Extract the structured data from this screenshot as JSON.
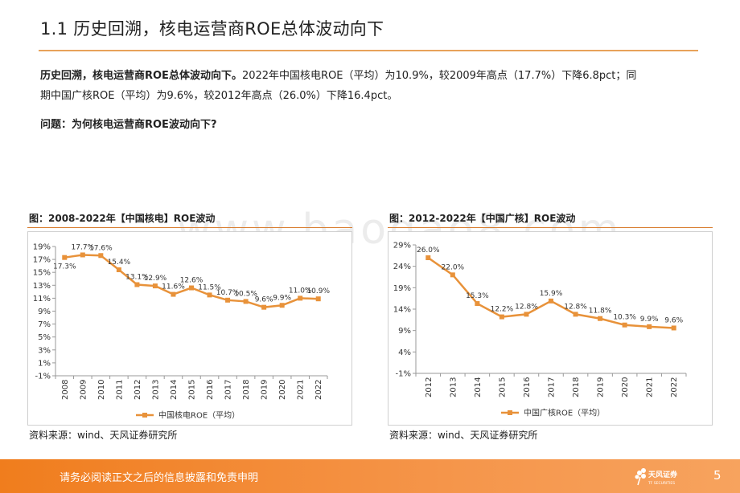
{
  "header": {
    "title": "1.1 历史回溯，核电运营商ROE总体波动向下"
  },
  "summary": {
    "lead": "历史回溯，核电运营商ROE总体波动向下。",
    "line1_rest": "2022年中国核电ROE（平均）为10.9%，较2009年高点（17.7%）下降6.8pct；同",
    "line2": "期中国广核ROE（平均）为9.6%，较2012年高点（26.0%）下降16.4pct。",
    "question": "问题：为何核电运营商ROE波动向下?"
  },
  "watermark": "www.baogao8.com",
  "left_chart": {
    "caption": "图：2008-2022年【中国核电】ROE波动",
    "source": "资料来源：wind、天风证券研究所"
  },
  "right_chart": {
    "caption": "图：2012-2022年【中国广核】ROE波动",
    "source": "资料来源：wind、天风证券研究所"
  },
  "footer": {
    "disclaimer": "请务必阅读正文之后的信息披露和免责申明",
    "logo_text": "天风证券",
    "logo_sub": "TF SECURITIES",
    "page_number": "5"
  },
  "colors": {
    "accent": "#e8923a",
    "line": "#e8923a",
    "footer": "#f07d1d"
  },
  "chart_data": [
    {
      "type": "line",
      "title": "",
      "categories": [
        "2008",
        "2009",
        "2010",
        "2011",
        "2012",
        "2013",
        "2014",
        "2015",
        "2016",
        "2017",
        "2018",
        "2019",
        "2020",
        "2021",
        "2022"
      ],
      "series": [
        {
          "name": "中国核电ROE（平均）",
          "values": [
            17.3,
            17.7,
            17.6,
            15.4,
            13.1,
            12.9,
            11.6,
            12.6,
            11.5,
            10.7,
            10.5,
            9.6,
            9.9,
            11.0,
            10.9
          ]
        }
      ],
      "data_labels": [
        "17.3%",
        "17.7%",
        "17.6%",
        "15.4%",
        "13.1%",
        "12.9%",
        "11.6%",
        "12.6%",
        "11.5%",
        "10.7%",
        "10.5%",
        "9.6%",
        "9.9%",
        "11.0%",
        "10.9%"
      ],
      "ylim": [
        -1,
        19
      ],
      "yticks": [
        "19%",
        "17%",
        "15%",
        "13%",
        "11%",
        "9%",
        "7%",
        "5%",
        "3%",
        "1%",
        "-1%"
      ],
      "ytick_values": [
        19,
        17,
        15,
        13,
        11,
        9,
        7,
        5,
        3,
        1,
        -1
      ],
      "legend": "bottom",
      "grid": false
    },
    {
      "type": "line",
      "title": "",
      "categories": [
        "2012",
        "2013",
        "2014",
        "2015",
        "2016",
        "2017",
        "2018",
        "2019",
        "2020",
        "2021",
        "2022"
      ],
      "series": [
        {
          "name": "中国广核ROE（平均）",
          "values": [
            26.0,
            22.0,
            15.3,
            12.2,
            12.8,
            15.9,
            12.8,
            11.8,
            10.3,
            9.9,
            9.6
          ]
        }
      ],
      "data_labels": [
        "26.0%",
        "22.0%",
        "15.3%",
        "12.2%",
        "12.8%",
        "15.9%",
        "12.8%",
        "11.8%",
        "10.3%",
        "9.9%",
        "9.6%"
      ],
      "ylim": [
        -1,
        29
      ],
      "yticks": [
        "29%",
        "24%",
        "19%",
        "14%",
        "9%",
        "4%",
        "-1%"
      ],
      "ytick_values": [
        29,
        24,
        19,
        14,
        9,
        4,
        -1
      ],
      "legend": "bottom",
      "grid": false
    }
  ]
}
